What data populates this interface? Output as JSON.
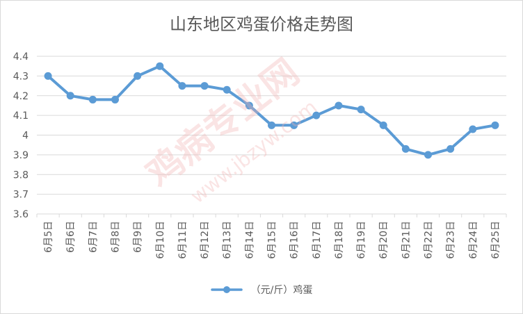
{
  "chart_data": {
    "type": "line",
    "title": "山东地区鸡蛋价格走势图",
    "categories": [
      "6月5日",
      "6月6日",
      "6月7日",
      "6月8日",
      "6月9日",
      "6月10日",
      "6月11日",
      "6月12日",
      "6月13日",
      "6月14日",
      "6月15日",
      "6月16日",
      "6月17日",
      "6月18日",
      "6月19日",
      "6月20日",
      "6月21日",
      "6月22日",
      "6月23日",
      "6月24日",
      "6月25日"
    ],
    "series": [
      {
        "name": "（元/斤）鸡蛋",
        "values": [
          4.3,
          4.2,
          4.18,
          4.18,
          4.3,
          4.35,
          4.25,
          4.25,
          4.23,
          4.15,
          4.05,
          4.05,
          4.1,
          4.15,
          4.13,
          4.05,
          3.93,
          3.9,
          3.93,
          4.03,
          4.05
        ]
      }
    ],
    "yticks": [
      "3.6",
      "3.7",
      "3.8",
      "3.9",
      "4",
      "4.1",
      "4.2",
      "4.3",
      "4.4"
    ],
    "ylim": [
      3.6,
      4.4
    ],
    "xlabel": "",
    "ylabel": "",
    "grid": true,
    "legend": "bottom"
  },
  "colors": {
    "series": "#5b9bd5",
    "grid": "#d9d9d9",
    "text": "#595959",
    "watermark": "#f2b3b3"
  },
  "watermark": {
    "main": "鸡病专业网",
    "url": "www.jbzyw.com"
  }
}
